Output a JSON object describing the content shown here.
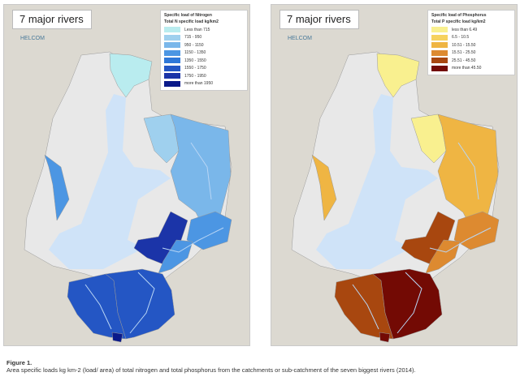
{
  "nitrogen_map": {
    "title": "7 major rivers",
    "logo_text": "HELCOM",
    "legend_title": "Specific load of Nitrogen",
    "legend_subtitle": "Total N specific load kg/km2",
    "classes": [
      {
        "label": "Less than 715",
        "color": "#b9ecef"
      },
      {
        "label": "715 - 950",
        "color": "#9fd0ee"
      },
      {
        "label": "950 - 1150",
        "color": "#7ab7ea"
      },
      {
        "label": "1150 - 1350",
        "color": "#4c96e3"
      },
      {
        "label": "1350 - 1550",
        "color": "#2f78d8"
      },
      {
        "label": "1550 - 1750",
        "color": "#2456c4"
      },
      {
        "label": "1750 - 1950",
        "color": "#1b34a8"
      },
      {
        "label": "more than 1950",
        "color": "#0b1a8a"
      }
    ]
  },
  "phosphorus_map": {
    "title": "7 major rivers",
    "logo_text": "HELCOM",
    "legend_title": "Specific load of Phosphorus",
    "legend_subtitle": "Total P specific load kg/km2",
    "classes": [
      {
        "label": "less than 6.49",
        "color": "#f9f08f"
      },
      {
        "label": "6.5 - 10.5",
        "color": "#f6d25e"
      },
      {
        "label": "10.51 - 15.50",
        "color": "#efb543"
      },
      {
        "label": "15.51 - 25.50",
        "color": "#dd8a30"
      },
      {
        "label": "25.51 - 45.50",
        "color": "#a8470f"
      },
      {
        "label": "more than 45.50",
        "color": "#730a04"
      }
    ]
  },
  "colors": {
    "sea": "#cfe3f8",
    "land": "#e8e8e8",
    "background": "#dcd9d1",
    "river": "#b9d6f5"
  },
  "caption": {
    "figure_label": "Figure 1.",
    "text": "Area specific loads kg km-2 (load/ area) of total nitrogen and total phosphorus from the catchments or sub-catchment of the seven biggest rivers (2014)."
  }
}
